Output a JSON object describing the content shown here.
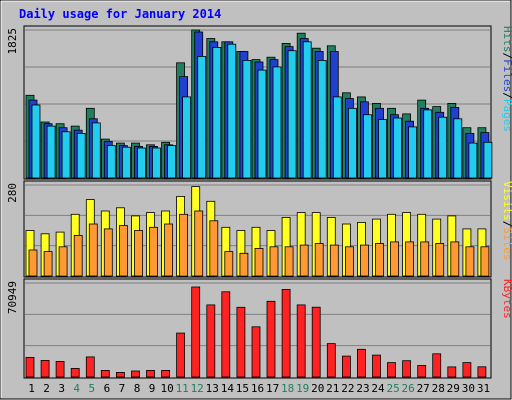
{
  "chart_data": {
    "type": "bar",
    "title": "Daily usage for January 2014",
    "categories": [
      "1",
      "2",
      "3",
      "4",
      "5",
      "6",
      "7",
      "8",
      "9",
      "10",
      "11",
      "12",
      "13",
      "14",
      "15",
      "16",
      "17",
      "18",
      "19",
      "20",
      "21",
      "22",
      "23",
      "24",
      "25",
      "26",
      "27",
      "28",
      "29",
      "30",
      "31"
    ],
    "weekend_days": [
      "4",
      "5",
      "11",
      "12",
      "18",
      "19",
      "25",
      "26"
    ],
    "panels": [
      {
        "id": "hits",
        "ymax_label": "1825",
        "ymax": 1825,
        "series": [
          {
            "name": "Hits",
            "color": "#1f7f5f",
            "values": [
              1020,
              690,
              670,
              640,
              860,
              480,
              430,
              430,
              410,
              440,
              1420,
              1825,
              1720,
              1680,
              1560,
              1460,
              1490,
              1660,
              1785,
              1600,
              1630,
              1050,
              1000,
              920,
              860,
              790,
              960,
              880,
              920,
              620,
              620
            ]
          },
          {
            "name": "Files",
            "color": "#2040d0",
            "values": [
              960,
              670,
              620,
              590,
              730,
              450,
              400,
              390,
              390,
              410,
              1250,
              1800,
              1680,
              1680,
              1560,
              1430,
              1460,
              1620,
              1720,
              1560,
              1560,
              980,
              940,
              860,
              780,
              700,
              860,
              810,
              870,
              550,
              560
            ]
          },
          {
            "name": "Pages",
            "color": "#22ccee",
            "values": [
              900,
              640,
              570,
              550,
              680,
              400,
              380,
              370,
              370,
              400,
              1000,
              1500,
              1610,
              1650,
              1450,
              1330,
              1370,
              1570,
              1680,
              1450,
              1000,
              860,
              780,
              720,
              740,
              630,
              840,
              750,
              730,
              430,
              440
            ]
          }
        ],
        "side_labels": [
          "Pages",
          "Files",
          "Hits"
        ],
        "side_colors": [
          "#22ccee",
          "#2040d0",
          "#1f7f5f"
        ]
      },
      {
        "id": "visits",
        "ymax_label": "280",
        "ymax": 280,
        "series": [
          {
            "name": "Visits",
            "color": "#ffff22",
            "values": [
              140,
              130,
              135,
              190,
              235,
              200,
              210,
              185,
              195,
              200,
              245,
              275,
              230,
              150,
              140,
              150,
              140,
              180,
              195,
              195,
              180,
              160,
              165,
              175,
              190,
              195,
              190,
              175,
              185,
              145,
              145
            ]
          },
          {
            "name": "Sites",
            "color": "#ff9933",
            "values": [
              80,
              75,
              90,
              125,
              160,
              145,
              155,
              140,
              150,
              160,
              190,
              200,
              170,
              75,
              70,
              85,
              90,
              90,
              95,
              100,
              95,
              90,
              95,
              100,
              105,
              105,
              105,
              100,
              105,
              90,
              90
            ]
          }
        ],
        "side_labels": [
          "Sites",
          "Visits"
        ],
        "side_colors": [
          "#ff9933",
          "#ffff22"
        ]
      },
      {
        "id": "kbytes",
        "ymax_label": "70949",
        "ymax": 70949,
        "series": [
          {
            "name": "KBytes",
            "color": "#ff2222",
            "values": [
              14800,
              12500,
              11800,
              6500,
              15200,
              5000,
              3500,
              4500,
              5000,
              5000,
              33100,
              67900,
              54400,
              64300,
              52600,
              37900,
              57100,
              66100,
              54400,
              52700,
              25200,
              15800,
              20900,
              16500,
              10900,
              12300,
              8700,
              17500,
              7600,
              10900,
              7700
            ]
          }
        ],
        "side_labels": [
          "KBytes"
        ],
        "side_colors": [
          "#ff2222"
        ]
      }
    ]
  }
}
